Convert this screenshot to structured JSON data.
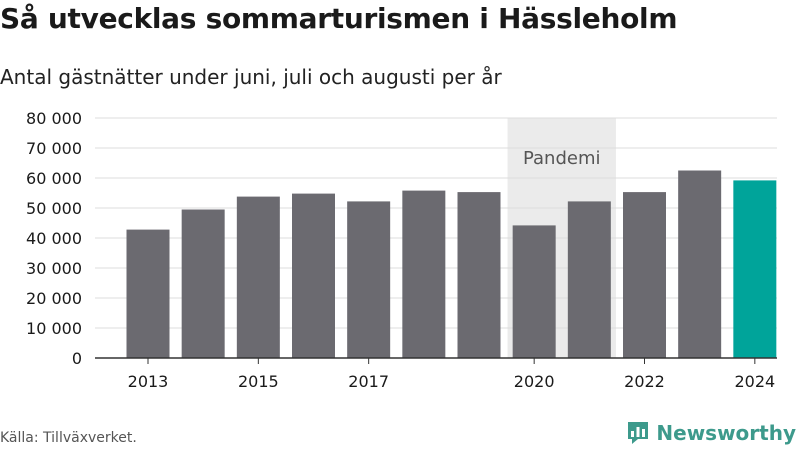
{
  "header": {
    "title": "Så utvecklas sommarturismen i Hässleholm",
    "subtitle": "Antal gästnätter under juni, juli och augusti per år"
  },
  "footer": {
    "source": "Källa: Tillväxverket.",
    "brand": "Newsworthy"
  },
  "colors": {
    "bar": "#6b6a70",
    "highlight": "#00a49a",
    "band": "#ebebeb",
    "brand": "#3d9a8c"
  },
  "chart_data": {
    "type": "bar",
    "categories": [
      "2013",
      "2014",
      "2015",
      "2016",
      "2017",
      "2018",
      "2019",
      "2020",
      "2021",
      "2022",
      "2023",
      "2024"
    ],
    "values": [
      42800,
      49500,
      53800,
      54800,
      52200,
      55800,
      55300,
      44200,
      52200,
      55300,
      62500,
      59200
    ],
    "highlight_category": "2024",
    "x_tick_labels": [
      "2013",
      "2015",
      "2017",
      "2020",
      "2022",
      "2024"
    ],
    "y_ticks": [
      0,
      10000,
      20000,
      30000,
      40000,
      50000,
      60000,
      70000,
      80000
    ],
    "y_tick_labels": [
      "0",
      "10 000",
      "20 000",
      "30 000",
      "40 000",
      "50 000",
      "60 000",
      "70 000",
      "80 000"
    ],
    "ylim": [
      0,
      80000
    ],
    "grid": true,
    "annotation": {
      "label": "Pandemi",
      "from": "2020",
      "to": "2021"
    }
  }
}
